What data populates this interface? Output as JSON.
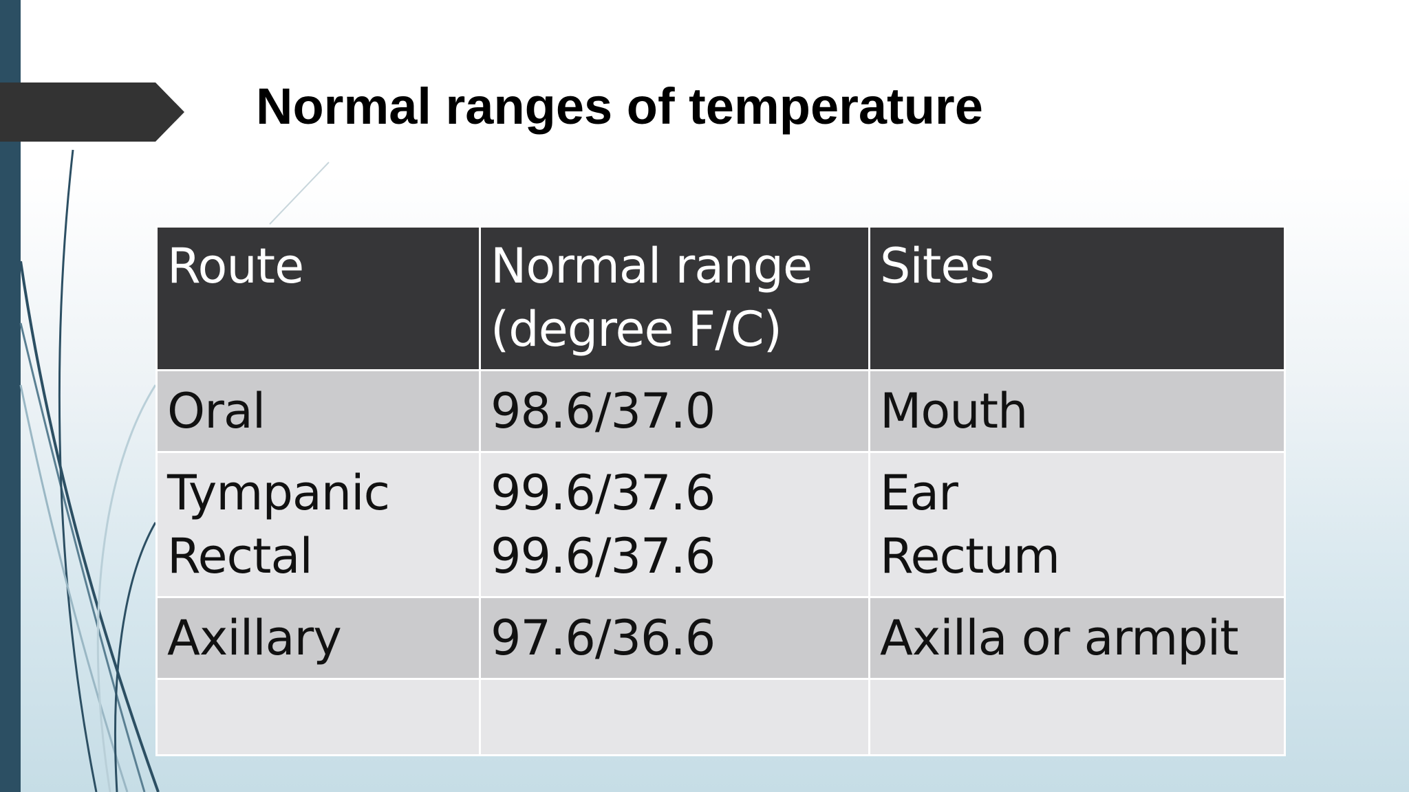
{
  "slide": {
    "title": "Normal ranges of temperature"
  },
  "table": {
    "headers": {
      "route": "Route",
      "range_line1": "Normal range",
      "range_line2": "(degree F/C)",
      "sites": "Sites"
    },
    "rows": [
      {
        "route": "Oral",
        "range": "98.6/37.0",
        "site": "Mouth"
      },
      {
        "route": "Tympanic",
        "range": "99.6/37.6",
        "site": "Ear"
      },
      {
        "route": "Rectal",
        "range": "99.6/37.6",
        "site": "Rectum"
      },
      {
        "route": "Axillary",
        "range": "97.6/36.6",
        "site": "Axilla or armpit"
      }
    ]
  },
  "colors": {
    "accent_bar": "#2c4f63",
    "header_bg": "#363638",
    "row_dark": "#cbcbcd",
    "row_light": "#e6e6e8"
  }
}
